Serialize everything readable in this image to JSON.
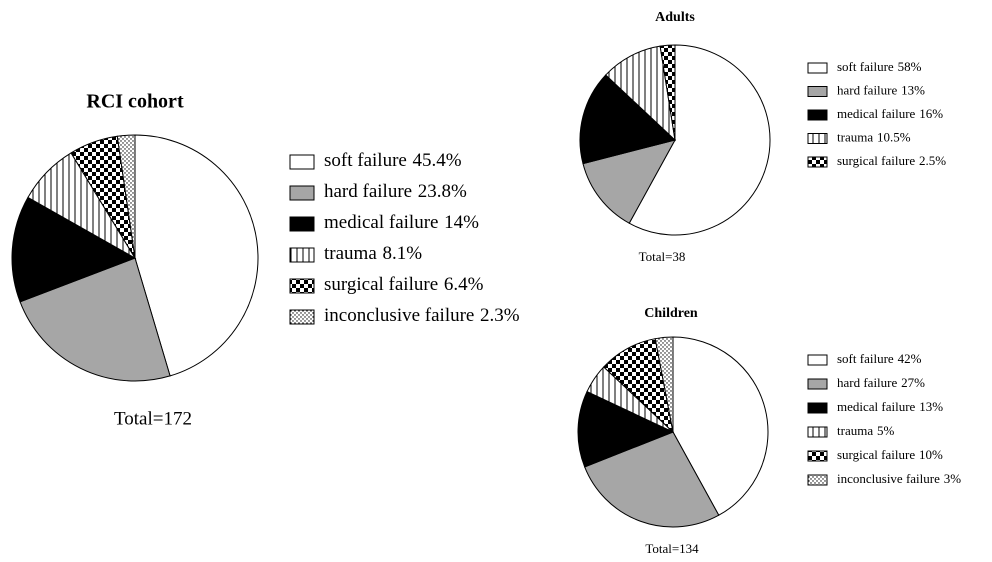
{
  "chart_data": [
    {
      "type": "pie",
      "title": "RCI cohort",
      "categories": [
        "soft failure",
        "hard failure",
        "medical failure",
        "trauma",
        "surgical failure",
        "inconclusive failure"
      ],
      "values": [
        45.4,
        23.8,
        14,
        8.1,
        6.4,
        2.3
      ],
      "value_labels": [
        "45.4%",
        "23.8%",
        "14%",
        "8.1%",
        "6.4%",
        "2.3%"
      ],
      "total_label": "Total=172"
    },
    {
      "type": "pie",
      "title": "Adults",
      "categories": [
        "soft failure",
        "hard failure",
        "medical failure",
        "trauma",
        "surgical failure"
      ],
      "values": [
        58,
        13,
        16,
        10.5,
        2.5
      ],
      "value_labels": [
        "58%",
        "13%",
        "16%",
        "10.5%",
        "2.5%"
      ],
      "total_label": "Total=38"
    },
    {
      "type": "pie",
      "title": "Children",
      "categories": [
        "soft failure",
        "hard failure",
        "medical failure",
        "trauma",
        "surgical failure",
        "inconclusive failure"
      ],
      "values": [
        42,
        27,
        13,
        5,
        10,
        3
      ],
      "value_labels": [
        "42%",
        "27%",
        "13%",
        "5%",
        "10%",
        "3%"
      ],
      "total_label": "Total=134"
    }
  ]
}
